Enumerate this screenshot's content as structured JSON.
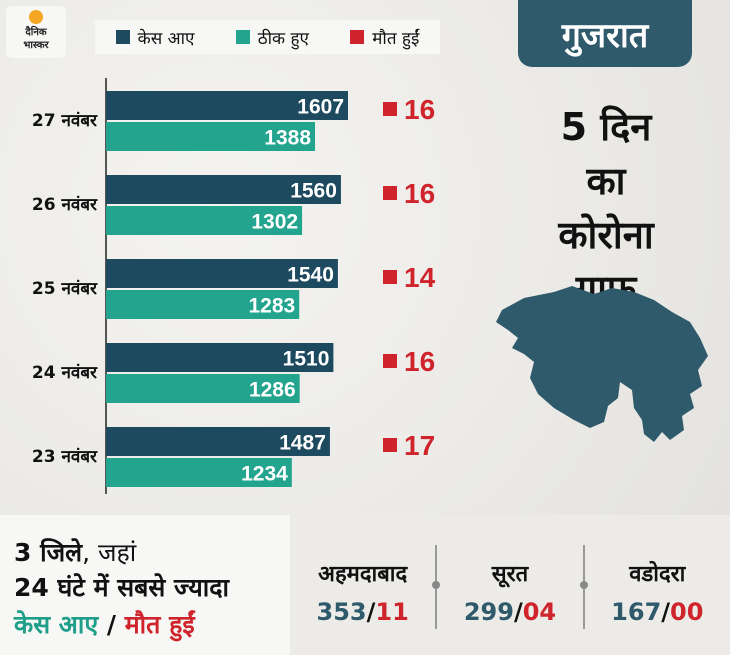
{
  "brand": {
    "line1": "दैनिक",
    "line2": "भास्कर"
  },
  "header": {
    "title": "गुजरात"
  },
  "headline": {
    "line1": "5 दिन का",
    "line2": "कोरोना",
    "line3": "ग्राफ"
  },
  "colors": {
    "cases": "#1d4a5e",
    "recovered": "#22a48f",
    "deaths": "#d0242c",
    "brand": "#2e5a6b"
  },
  "icons": {
    "map": "gujarat-map-icon",
    "logo-sun": "sun-icon"
  },
  "chart_data": {
    "type": "bar",
    "orientation": "horizontal",
    "categories": [
      "27 नवंबर",
      "26 नवंबर",
      "25 नवंबर",
      "24 नवंबर",
      "23 नवंबर"
    ],
    "series": [
      {
        "name": "केस आए",
        "values": [
          1607,
          1560,
          1540,
          1510,
          1487
        ]
      },
      {
        "name": "ठीक हुए",
        "values": [
          1388,
          1302,
          1283,
          1286,
          1234
        ]
      },
      {
        "name": "मौत हुईं",
        "values": [
          16,
          16,
          14,
          16,
          17
        ]
      }
    ],
    "legend_position": "top",
    "xlim": [
      0,
      1607
    ],
    "grid": false,
    "title": "",
    "xlabel": "",
    "ylabel": ""
  },
  "summary": {
    "line1a": "3 जिले",
    "line1b": ", जहां",
    "line2": "24 घंटे में सबसे ज्यादा",
    "cases_label": "केस आए",
    "sep": " / ",
    "deaths_label": "मौत हुईं"
  },
  "cities": [
    {
      "name": "अहमदाबाद",
      "cases": "353",
      "deaths": "11"
    },
    {
      "name": "सूरत",
      "cases": "299",
      "deaths": "04"
    },
    {
      "name": "वडोदरा",
      "cases": "167",
      "deaths": "00"
    }
  ]
}
